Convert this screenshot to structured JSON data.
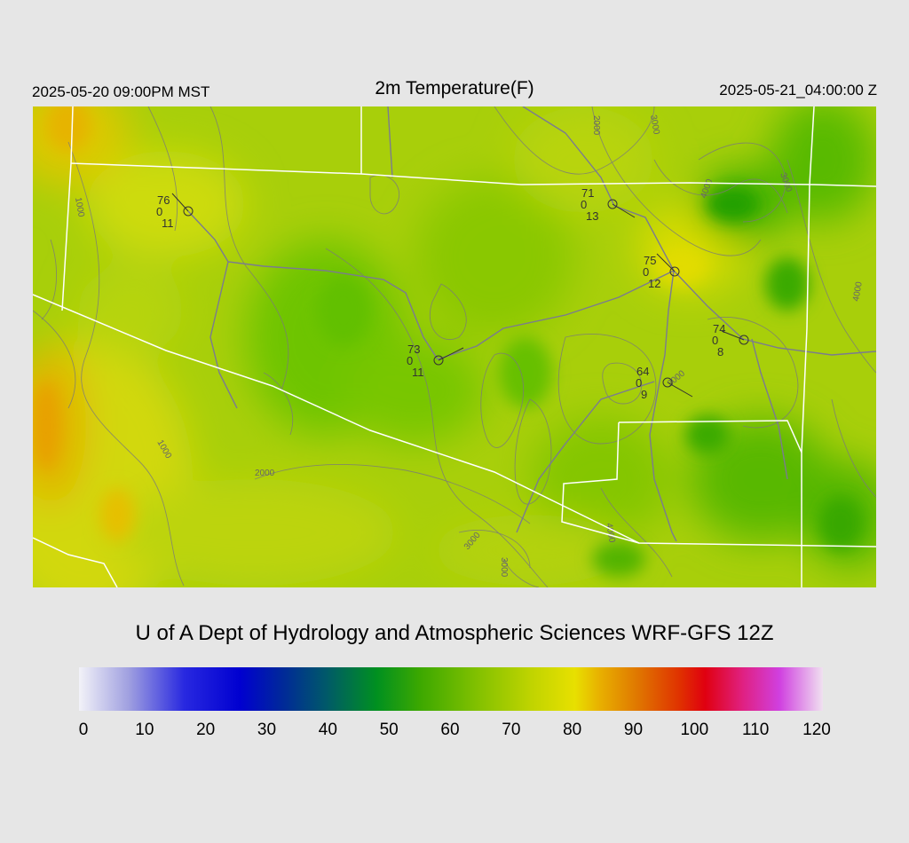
{
  "header": {
    "local_time": "2025-05-20 09:00PM MST",
    "title": "2m Temperature(F)",
    "utc_time": "2025-05-21_04:00:00 Z"
  },
  "credit": "U of A Dept of Hydrology and Atmospheric Sciences WRF-GFS 12Z",
  "colorbar": {
    "ticks": [
      "0",
      "10",
      "20",
      "30",
      "40",
      "50",
      "60",
      "70",
      "80",
      "90",
      "100",
      "110",
      "120"
    ],
    "range": [
      0,
      120
    ],
    "stops": [
      {
        "v": 0,
        "c": "#f2f2f8"
      },
      {
        "v": 8,
        "c": "#a0a0e0"
      },
      {
        "v": 17,
        "c": "#2828e0"
      },
      {
        "v": 26,
        "c": "#0000d0"
      },
      {
        "v": 33,
        "c": "#002a98"
      },
      {
        "v": 40,
        "c": "#005a68"
      },
      {
        "v": 48,
        "c": "#009020"
      },
      {
        "v": 55,
        "c": "#3ca800"
      },
      {
        "v": 64,
        "c": "#80c000"
      },
      {
        "v": 73,
        "c": "#c0d400"
      },
      {
        "v": 80,
        "c": "#e8e000"
      },
      {
        "v": 84,
        "c": "#e8b000"
      },
      {
        "v": 90,
        "c": "#e07800"
      },
      {
        "v": 97,
        "c": "#e03000"
      },
      {
        "v": 101,
        "c": "#e00010"
      },
      {
        "v": 107,
        "c": "#e02080"
      },
      {
        "v": 113,
        "c": "#d040e0"
      },
      {
        "v": 120,
        "c": "#f0e0f0"
      }
    ]
  },
  "stations": [
    {
      "temp": "76",
      "cloud": "0",
      "dew": "11"
    },
    {
      "temp": "71",
      "cloud": "0",
      "dew": "13"
    },
    {
      "temp": "75",
      "cloud": "0",
      "dew": "12"
    },
    {
      "temp": "74",
      "cloud": "0",
      "dew": "8"
    },
    {
      "temp": "73",
      "cloud": "0",
      "dew": "11"
    },
    {
      "temp": "64",
      "cloud": "0",
      "dew": "9"
    }
  ],
  "contour_labels": [
    "1000",
    "2000",
    "3000",
    "4000",
    "1000",
    "2000",
    "3000",
    "3000",
    "4000",
    "4000",
    "4000",
    "3000",
    "3000"
  ],
  "colors": {
    "background": "#e6e6e6",
    "boundary": "#ffffff",
    "road": "#77778a",
    "contour": "#888888"
  }
}
